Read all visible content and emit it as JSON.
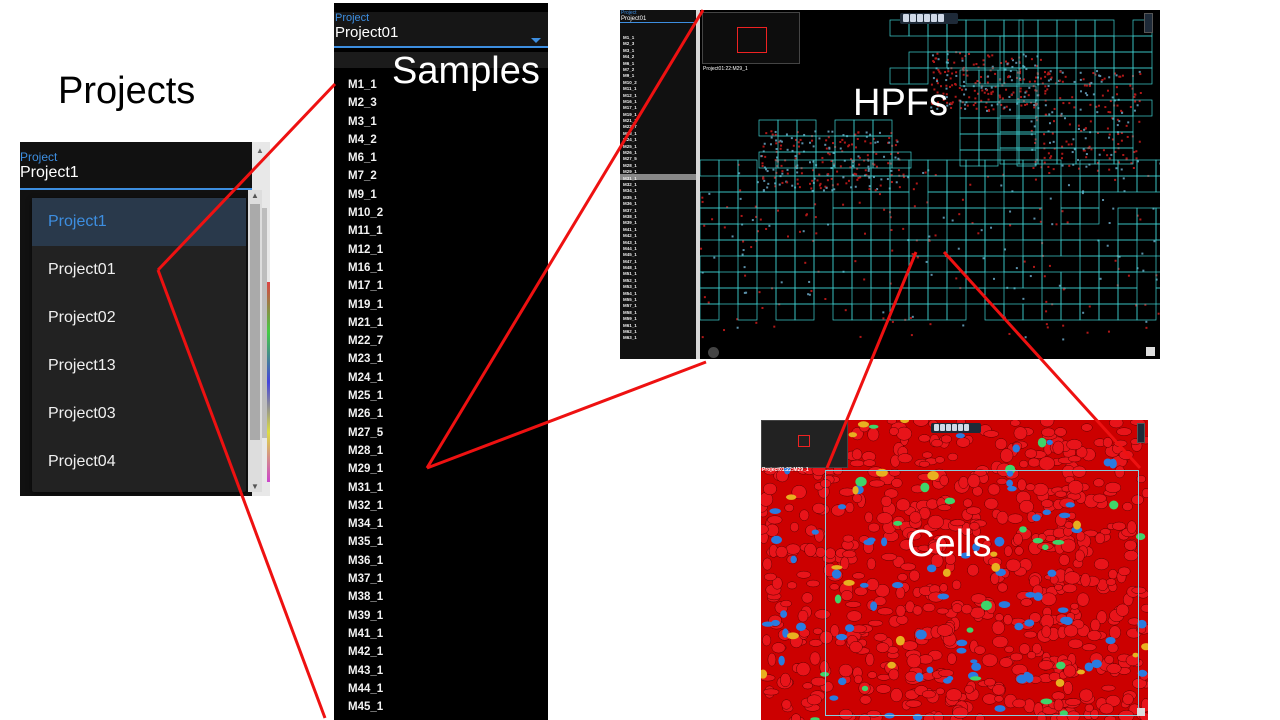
{
  "captions": {
    "projects": "Projects",
    "samples": "Samples",
    "hpfs": "HPFs",
    "cells": "Cells"
  },
  "projects_panel": {
    "field_label": "Project",
    "selected": "Project1",
    "menu_items": [
      "Project1",
      "Project01",
      "Project02",
      "Project13",
      "Project03",
      "Project04"
    ]
  },
  "samples_panel": {
    "field_label": "Project",
    "selected": "Project01",
    "samples": [
      "M1_1",
      "M2_3",
      "M3_1",
      "M4_2",
      "M6_1",
      "M7_2",
      "M9_1",
      "M10_2",
      "M11_1",
      "M12_1",
      "M16_1",
      "M17_1",
      "M19_1",
      "M21_1",
      "M22_7",
      "M23_1",
      "M24_1",
      "M25_1",
      "M26_1",
      "M27_5",
      "M28_1",
      "M29_1",
      "M31_1",
      "M32_1",
      "M34_1",
      "M35_1",
      "M36_1",
      "M37_1",
      "M38_1",
      "M39_1",
      "M41_1",
      "M42_1",
      "M43_1",
      "M44_1",
      "M45_1"
    ]
  },
  "hpf_viewer": {
    "field_label": "Project",
    "selected": "Project01",
    "sample_label": "Project01:22:M29_1",
    "samples": [
      "M1_1",
      "M2_3",
      "M3_1",
      "M4_2",
      "M6_1",
      "M7_2",
      "M9_1",
      "M10_2",
      "M11_1",
      "M12_1",
      "M16_1",
      "M17_1",
      "M19_1",
      "M21_1",
      "M22_7",
      "M23_1",
      "M24_1",
      "M25_1",
      "M26_1",
      "M27_5",
      "M28_1",
      "M29_1",
      "M31_1",
      "M32_1",
      "M34_1",
      "M35_1",
      "M36_1",
      "M37_1",
      "M38_1",
      "M39_1",
      "M41_1",
      "M42_1",
      "M43_1",
      "M44_1",
      "M45_1",
      "M47_1",
      "M48_1",
      "M51_1",
      "M52_1",
      "M53_1",
      "M54_1",
      "M55_1",
      "M57_1",
      "M58_1",
      "M59_1",
      "M61_1",
      "M62_1",
      "M63_1"
    ]
  },
  "cells_viewer": {
    "sample_label": "Project01:22:M29_1"
  },
  "colors": {
    "accent_blue": "#3d8ee0",
    "annotation_red": "#ee1111",
    "hpf_grid": "#3fd4d4",
    "cell_red": "#e8141a"
  }
}
